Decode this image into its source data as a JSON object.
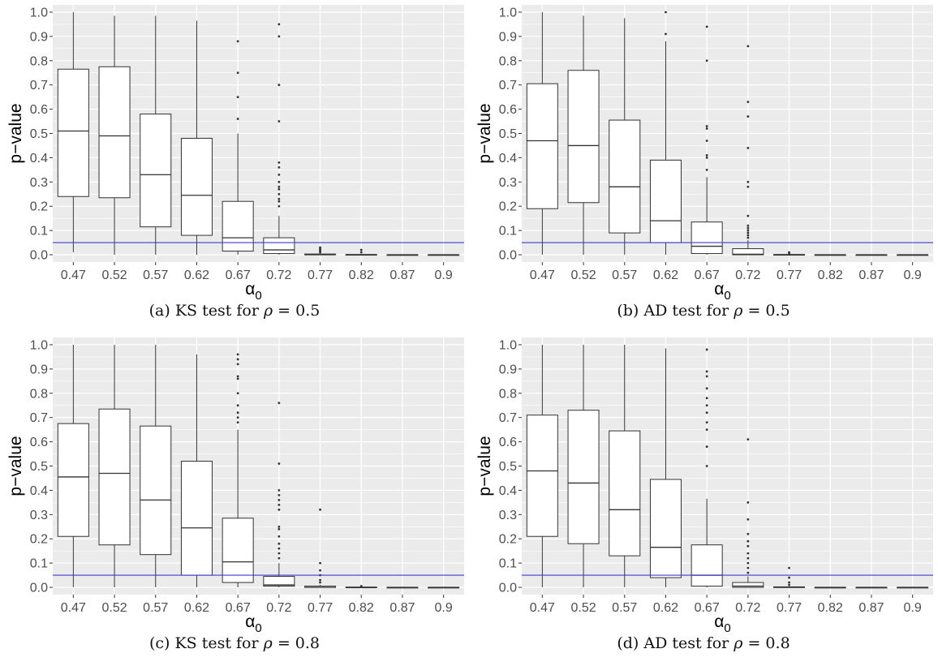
{
  "colors": {
    "panel_bg": "#ebebeb",
    "grid": "#ffffff",
    "box_fill": "#ffffff",
    "box_line": "#333333",
    "threshold_line": "#3b3bd6"
  },
  "chart_data": [
    {
      "id": "a",
      "type": "boxplot",
      "caption": {
        "prefix": "(a) KS test for ",
        "symbol": "ρ",
        "suffix": " = 0.5"
      },
      "ylabel": "p−value",
      "xlabel_main": "α",
      "xlabel_sub": "0",
      "categories": [
        "0.47",
        "0.52",
        "0.57",
        "0.62",
        "0.67",
        "0.72",
        "0.77",
        "0.82",
        "0.87",
        "0.9"
      ],
      "y_ticks": [
        "0.0",
        "0.1",
        "0.2",
        "0.3",
        "0.4",
        "0.5",
        "0.6",
        "0.7",
        "0.8",
        "0.9",
        "1.0"
      ],
      "ylim": [
        -0.03,
        1.03
      ],
      "hline": 0.05,
      "boxes": [
        {
          "min": 0.01,
          "q1": 0.24,
          "median": 0.51,
          "q3": 0.765,
          "max": 1.0,
          "outliers": []
        },
        {
          "min": 0.0,
          "q1": 0.235,
          "median": 0.49,
          "q3": 0.775,
          "max": 0.985,
          "outliers": []
        },
        {
          "min": 0.0,
          "q1": 0.115,
          "median": 0.33,
          "q3": 0.58,
          "max": 0.985,
          "outliers": []
        },
        {
          "min": 0.0,
          "q1": 0.08,
          "median": 0.245,
          "q3": 0.48,
          "max": 0.965,
          "outliers": []
        },
        {
          "min": 0.0,
          "q1": 0.015,
          "median": 0.07,
          "q3": 0.22,
          "max": 0.5,
          "outliers": [
            0.56,
            0.65,
            0.75,
            0.88
          ]
        },
        {
          "min": 0.0,
          "q1": 0.005,
          "median": 0.02,
          "q3": 0.07,
          "max": 0.16,
          "outliers": [
            0.2,
            0.22,
            0.23,
            0.25,
            0.27,
            0.28,
            0.3,
            0.33,
            0.36,
            0.38,
            0.55,
            0.7,
            0.9,
            0.95
          ]
        },
        {
          "min": 0.0,
          "q1": 0.0,
          "median": 0.0,
          "q3": 0.003,
          "max": 0.005,
          "outliers": [
            0.01,
            0.015,
            0.02,
            0.025,
            0.03
          ]
        },
        {
          "min": 0.0,
          "q1": 0.0,
          "median": 0.0,
          "q3": 0.001,
          "max": 0.002,
          "outliers": [
            0.01,
            0.02
          ]
        },
        {
          "min": 0.0,
          "q1": 0.0,
          "median": 0.0,
          "q3": 0.0,
          "max": 0.0,
          "outliers": []
        },
        {
          "min": 0.0,
          "q1": 0.0,
          "median": 0.0,
          "q3": 0.0,
          "max": 0.0,
          "outliers": []
        }
      ]
    },
    {
      "id": "b",
      "type": "boxplot",
      "caption": {
        "prefix": "(b) AD test for ",
        "symbol": "ρ",
        "suffix": " = 0.5"
      },
      "ylabel": "p−value",
      "xlabel_main": "α",
      "xlabel_sub": "0",
      "categories": [
        "0.47",
        "0.52",
        "0.57",
        "0.62",
        "0.67",
        "0.72",
        "0.77",
        "0.82",
        "0.87",
        "0.9"
      ],
      "y_ticks": [
        "0.0",
        "0.1",
        "0.2",
        "0.3",
        "0.4",
        "0.5",
        "0.6",
        "0.7",
        "0.8",
        "0.9",
        "1.0"
      ],
      "ylim": [
        -0.03,
        1.03
      ],
      "hline": 0.05,
      "boxes": [
        {
          "min": 0.0,
          "q1": 0.19,
          "median": 0.47,
          "q3": 0.705,
          "max": 1.0,
          "outliers": []
        },
        {
          "min": 0.0,
          "q1": 0.215,
          "median": 0.45,
          "q3": 0.76,
          "max": 0.985,
          "outliers": []
        },
        {
          "min": 0.0,
          "q1": 0.09,
          "median": 0.28,
          "q3": 0.555,
          "max": 0.975,
          "outliers": []
        },
        {
          "min": 0.0,
          "q1": 0.05,
          "median": 0.14,
          "q3": 0.39,
          "max": 0.88,
          "outliers": [
            0.91,
            1.0
          ]
        },
        {
          "min": 0.0,
          "q1": 0.005,
          "median": 0.035,
          "q3": 0.135,
          "max": 0.32,
          "outliers": [
            0.35,
            0.4,
            0.41,
            0.47,
            0.52,
            0.53,
            0.8,
            0.94
          ]
        },
        {
          "min": 0.0,
          "q1": 0.0,
          "median": 0.002,
          "q3": 0.025,
          "max": 0.06,
          "outliers": [
            0.07,
            0.08,
            0.09,
            0.1,
            0.11,
            0.12,
            0.16,
            0.28,
            0.3,
            0.44,
            0.57,
            0.63,
            0.86
          ]
        },
        {
          "min": 0.0,
          "q1": 0.0,
          "median": 0.0,
          "q3": 0.001,
          "max": 0.002,
          "outliers": [
            0.005,
            0.01
          ]
        },
        {
          "min": 0.0,
          "q1": 0.0,
          "median": 0.0,
          "q3": 0.0,
          "max": 0.0,
          "outliers": []
        },
        {
          "min": 0.0,
          "q1": 0.0,
          "median": 0.0,
          "q3": 0.0,
          "max": 0.0,
          "outliers": []
        },
        {
          "min": 0.0,
          "q1": 0.0,
          "median": 0.0,
          "q3": 0.0,
          "max": 0.0,
          "outliers": []
        }
      ]
    },
    {
      "id": "c",
      "type": "boxplot",
      "caption": {
        "prefix": "(c) KS test for ",
        "symbol": "ρ",
        "suffix": " = 0.8"
      },
      "ylabel": "p−value",
      "xlabel_main": "α",
      "xlabel_sub": "0",
      "categories": [
        "0.47",
        "0.52",
        "0.57",
        "0.62",
        "0.67",
        "0.72",
        "0.77",
        "0.82",
        "0.87",
        "0.9"
      ],
      "y_ticks": [
        "0.0",
        "0.1",
        "0.2",
        "0.3",
        "0.4",
        "0.5",
        "0.6",
        "0.7",
        "0.8",
        "0.9",
        "1.0"
      ],
      "ylim": [
        -0.03,
        1.03
      ],
      "hline": 0.05,
      "boxes": [
        {
          "min": 0.0,
          "q1": 0.21,
          "median": 0.455,
          "q3": 0.675,
          "max": 1.0,
          "outliers": []
        },
        {
          "min": 0.0,
          "q1": 0.175,
          "median": 0.47,
          "q3": 0.735,
          "max": 1.0,
          "outliers": []
        },
        {
          "min": 0.0,
          "q1": 0.135,
          "median": 0.36,
          "q3": 0.665,
          "max": 1.0,
          "outliers": []
        },
        {
          "min": 0.0,
          "q1": 0.05,
          "median": 0.245,
          "q3": 0.52,
          "max": 0.96,
          "outliers": []
        },
        {
          "min": 0.0,
          "q1": 0.02,
          "median": 0.105,
          "q3": 0.285,
          "max": 0.65,
          "outliers": [
            0.68,
            0.7,
            0.72,
            0.75,
            0.8,
            0.86,
            0.87,
            0.92,
            0.94,
            0.96
          ]
        },
        {
          "min": 0.0,
          "q1": 0.005,
          "median": 0.01,
          "q3": 0.045,
          "max": 0.1,
          "outliers": [
            0.12,
            0.14,
            0.16,
            0.18,
            0.21,
            0.24,
            0.25,
            0.32,
            0.34,
            0.36,
            0.38,
            0.4,
            0.51,
            0.76
          ]
        },
        {
          "min": 0.0,
          "q1": 0.0,
          "median": 0.0,
          "q3": 0.005,
          "max": 0.01,
          "outliers": [
            0.02,
            0.03,
            0.05,
            0.07,
            0.1,
            0.32
          ]
        },
        {
          "min": 0.0,
          "q1": 0.0,
          "median": 0.0,
          "q3": 0.001,
          "max": 0.002,
          "outliers": [
            0.005
          ]
        },
        {
          "min": 0.0,
          "q1": 0.0,
          "median": 0.0,
          "q3": 0.0,
          "max": 0.0,
          "outliers": []
        },
        {
          "min": 0.0,
          "q1": 0.0,
          "median": 0.0,
          "q3": 0.0,
          "max": 0.0,
          "outliers": []
        }
      ]
    },
    {
      "id": "d",
      "type": "boxplot",
      "caption": {
        "prefix": "(d) AD test for ",
        "symbol": "ρ",
        "suffix": " = 0.8"
      },
      "ylabel": "p−value",
      "xlabel_main": "α",
      "xlabel_sub": "0",
      "categories": [
        "0.47",
        "0.52",
        "0.57",
        "0.62",
        "0.67",
        "0.72",
        "0.77",
        "0.82",
        "0.87",
        "0.9"
      ],
      "y_ticks": [
        "0.0",
        "0.1",
        "0.2",
        "0.3",
        "0.4",
        "0.5",
        "0.6",
        "0.7",
        "0.8",
        "0.9",
        "1.0"
      ],
      "ylim": [
        -0.03,
        1.03
      ],
      "hline": 0.05,
      "boxes": [
        {
          "min": 0.0,
          "q1": 0.21,
          "median": 0.48,
          "q3": 0.71,
          "max": 1.0,
          "outliers": []
        },
        {
          "min": 0.0,
          "q1": 0.18,
          "median": 0.43,
          "q3": 0.73,
          "max": 1.0,
          "outliers": []
        },
        {
          "min": 0.0,
          "q1": 0.13,
          "median": 0.32,
          "q3": 0.645,
          "max": 1.0,
          "outliers": []
        },
        {
          "min": 0.0,
          "q1": 0.04,
          "median": 0.165,
          "q3": 0.445,
          "max": 0.985,
          "outliers": []
        },
        {
          "min": 0.0,
          "q1": 0.005,
          "median": 0.05,
          "q3": 0.175,
          "max": 0.365,
          "outliers": [
            0.5,
            0.58,
            0.65,
            0.68,
            0.72,
            0.75,
            0.78,
            0.82,
            0.87,
            0.89,
            0.98
          ]
        },
        {
          "min": 0.0,
          "q1": 0.0,
          "median": 0.005,
          "q3": 0.02,
          "max": 0.045,
          "outliers": [
            0.06,
            0.08,
            0.1,
            0.12,
            0.14,
            0.17,
            0.19,
            0.22,
            0.28,
            0.35,
            0.61
          ]
        },
        {
          "min": 0.0,
          "q1": 0.0,
          "median": 0.0,
          "q3": 0.002,
          "max": 0.004,
          "outliers": [
            0.01,
            0.02,
            0.04,
            0.08
          ]
        },
        {
          "min": 0.0,
          "q1": 0.0,
          "median": 0.0,
          "q3": 0.0,
          "max": 0.0,
          "outliers": []
        },
        {
          "min": 0.0,
          "q1": 0.0,
          "median": 0.0,
          "q3": 0.0,
          "max": 0.0,
          "outliers": []
        },
        {
          "min": 0.0,
          "q1": 0.0,
          "median": 0.0,
          "q3": 0.0,
          "max": 0.0,
          "outliers": []
        }
      ]
    }
  ]
}
